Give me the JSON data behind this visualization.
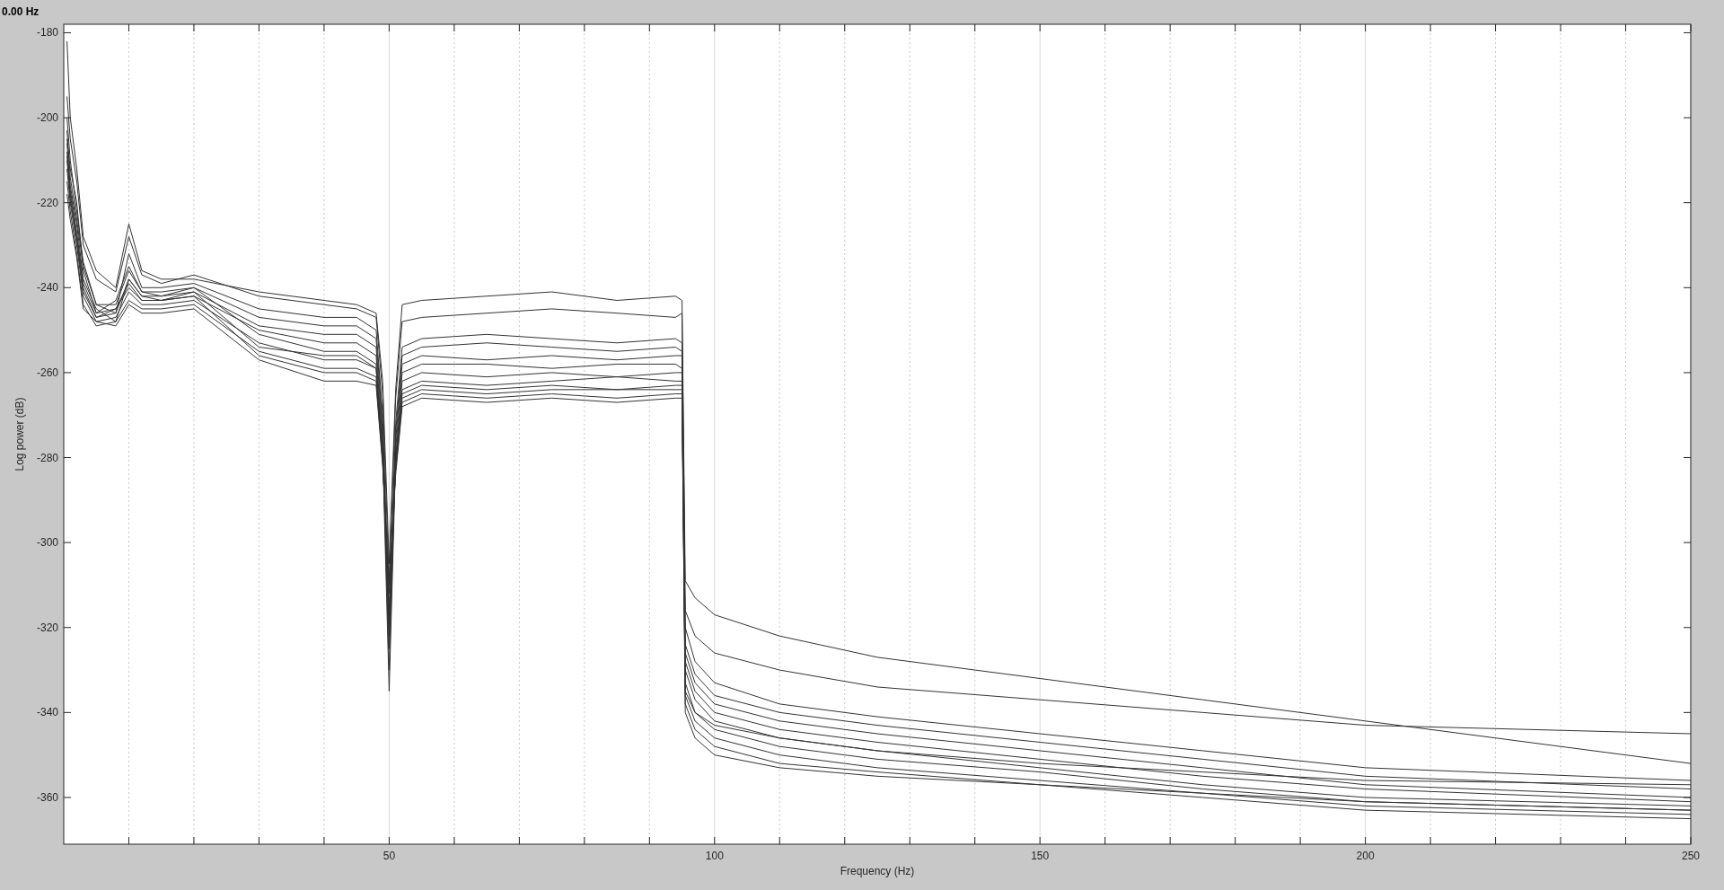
{
  "chart_data": {
    "type": "line",
    "title": "0.00 Hz",
    "xlabel": "Frequency (Hz)",
    "ylabel": "Log power (dB)",
    "xlim": [
      0,
      250
    ],
    "ylim": [
      -371,
      -178
    ],
    "grid": "x",
    "marker": "none",
    "line_style": "solid",
    "xticks": [
      {
        "value": 10,
        "label": null
      },
      {
        "value": 20,
        "label": null
      },
      {
        "value": 30,
        "label": null
      },
      {
        "value": 40,
        "label": null
      },
      50,
      {
        "value": 60,
        "label": null
      },
      {
        "value": 70,
        "label": null
      },
      {
        "value": 80,
        "label": null
      },
      {
        "value": 90,
        "label": null
      },
      100,
      {
        "value": 110,
        "label": null
      },
      {
        "value": 120,
        "label": null
      },
      {
        "value": 130,
        "label": null
      },
      {
        "value": 140,
        "label": null
      },
      150,
      {
        "value": 160,
        "label": null
      },
      {
        "value": 170,
        "label": null
      },
      {
        "value": 180,
        "label": null
      },
      {
        "value": 190,
        "label": null
      },
      200,
      {
        "value": 210,
        "label": null
      },
      {
        "value": 220,
        "label": null
      },
      {
        "value": 230,
        "label": null
      },
      {
        "value": 240,
        "label": null
      },
      250
    ],
    "yticks": [
      -360,
      -340,
      -320,
      -300,
      -280,
      -260,
      -240,
      -220,
      -200,
      -180
    ],
    "x": [
      0.5,
      1,
      2,
      3,
      5,
      8,
      10,
      12,
      15,
      20,
      30,
      40,
      45,
      48,
      49,
      50,
      51,
      52,
      55,
      65,
      75,
      85,
      94,
      95,
      95.5,
      97,
      100,
      110,
      125,
      150,
      175,
      200,
      250
    ],
    "series": [
      {
        "color": "#333333",
        "values": [
          -182,
          -200,
          -212,
          -228,
          -236,
          -240,
          -225,
          -236,
          -238,
          -238,
          -241,
          -243,
          -244,
          -246,
          -262,
          -305,
          -264,
          -244,
          -243,
          -242,
          -241,
          -243,
          -242,
          -243,
          -309,
          -313,
          -317,
          -322,
          -327,
          -332,
          -337,
          -342,
          -352
        ]
      },
      {
        "color": "#333333",
        "values": [
          -195,
          -205,
          -215,
          -230,
          -238,
          -241,
          -228,
          -237,
          -239,
          -237,
          -242,
          -244,
          -245,
          -247,
          -265,
          -310,
          -266,
          -248,
          -247,
          -246,
          -245,
          -246,
          -247,
          -246,
          -316,
          -322,
          -326,
          -330,
          -334,
          -337,
          -340,
          -343,
          -345
        ]
      },
      {
        "color": "#333333",
        "values": [
          -200,
          -210,
          -222,
          -234,
          -244,
          -246,
          -232,
          -240,
          -240,
          -239,
          -245,
          -247,
          -247,
          -250,
          -270,
          -320,
          -272,
          -254,
          -252,
          -251,
          -252,
          -253,
          -252,
          -253,
          -320,
          -328,
          -333,
          -338,
          -341,
          -345,
          -349,
          -353,
          -356
        ]
      },
      {
        "color": "#333333",
        "values": [
          -205,
          -212,
          -220,
          -236,
          -246,
          -243,
          -235,
          -241,
          -241,
          -240,
          -247,
          -249,
          -249,
          -252,
          -272,
          -318,
          -274,
          -256,
          -254,
          -253,
          -254,
          -255,
          -254,
          -255,
          -324,
          -331,
          -336,
          -340,
          -343,
          -347,
          -351,
          -355,
          -358
        ]
      },
      {
        "color": "#333333",
        "values": [
          -208,
          -216,
          -225,
          -238,
          -245,
          -248,
          -238,
          -242,
          -242,
          -241,
          -249,
          -251,
          -251,
          -254,
          -274,
          -325,
          -276,
          -258,
          -256,
          -257,
          -256,
          -257,
          -256,
          -256,
          -326,
          -333,
          -338,
          -342,
          -345,
          -349,
          -353,
          -357,
          -360
        ]
      },
      {
        "color": "#333333",
        "values": [
          -210,
          -218,
          -228,
          -240,
          -247,
          -245,
          -240,
          -243,
          -243,
          -242,
          -250,
          -253,
          -253,
          -256,
          -276,
          -330,
          -278,
          -260,
          -258,
          -258,
          -259,
          -258,
          -258,
          -259,
          -328,
          -335,
          -340,
          -344,
          -347,
          -351,
          -355,
          -358,
          -361
        ]
      },
      {
        "color": "#333333",
        "values": [
          -203,
          -214,
          -224,
          -235,
          -244,
          -244,
          -236,
          -241,
          -242,
          -240,
          -251,
          -255,
          -255,
          -258,
          -278,
          -335,
          -280,
          -262,
          -260,
          -261,
          -260,
          -261,
          -260,
          -260,
          -330,
          -337,
          -342,
          -346,
          -349,
          -353,
          -357,
          -360,
          -362
        ]
      },
      {
        "color": "#333333",
        "values": [
          -212,
          -220,
          -230,
          -242,
          -248,
          -247,
          -241,
          -244,
          -244,
          -243,
          -253,
          -257,
          -257,
          -259,
          -279,
          -322,
          -281,
          -264,
          -262,
          -263,
          -262,
          -261,
          -262,
          -262,
          -333,
          -340,
          -344,
          -348,
          -351,
          -354,
          -358,
          -361,
          -363
        ]
      },
      {
        "color": "#333333",
        "values": [
          -215,
          -222,
          -232,
          -244,
          -249,
          -248,
          -243,
          -245,
          -245,
          -244,
          -255,
          -259,
          -259,
          -261,
          -280,
          -315,
          -282,
          -265,
          -263,
          -264,
          -263,
          -264,
          -263,
          -263,
          -336,
          -342,
          -346,
          -350,
          -353,
          -356,
          -359,
          -362,
          -364
        ]
      },
      {
        "color": "#333333",
        "values": [
          -206,
          -217,
          -227,
          -239,
          -246,
          -245,
          -239,
          -243,
          -243,
          -242,
          -256,
          -260,
          -260,
          -262,
          -281,
          -312,
          -283,
          -267,
          -265,
          -266,
          -265,
          -266,
          -265,
          -265,
          -338,
          -344,
          -348,
          -352,
          -354,
          -357,
          -360,
          -363,
          -365
        ]
      },
      {
        "color": "#333333",
        "values": [
          -218,
          -224,
          -233,
          -245,
          -248,
          -249,
          -244,
          -246,
          -246,
          -245,
          -257,
          -262,
          -262,
          -263,
          -282,
          -308,
          -284,
          -268,
          -266,
          -267,
          -266,
          -267,
          -266,
          -266,
          -340,
          -346,
          -350,
          -353,
          -355,
          -357,
          -359,
          -361,
          -363
        ]
      },
      {
        "color": "#333333",
        "values": [
          -209,
          -219,
          -229,
          -241,
          -247,
          -246,
          -238,
          -242,
          -243,
          -241,
          -254,
          -256,
          -256,
          -259,
          -279,
          -318,
          -281,
          -266,
          -264,
          -265,
          -264,
          -264,
          -264,
          -264,
          -335,
          -340,
          -343,
          -346,
          -349,
          -352,
          -354,
          -356,
          -357
        ]
      }
    ]
  }
}
